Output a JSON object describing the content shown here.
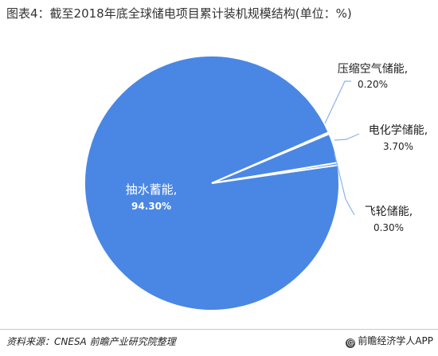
{
  "title": "图表4：截至2018年底全球储电项目累计装机规模结构(单位：%)",
  "source": "资料来源：CNESA  前瞻产业研究院整理",
  "brand": "前瞻经济学人APP",
  "brand_icon": "at-icon",
  "colors": {
    "pie": "#4a87e4",
    "separator": "#ffffff",
    "leader": "#8fb3e6",
    "inside_label": "#ffffff",
    "outside_label": "#222222"
  },
  "chart_data": {
    "type": "pie",
    "title": "图表4：截至2018年底全球储电项目累计装机规模结构(单位：%)",
    "categories": [
      "抽水蓄能",
      "压缩空气储能",
      "电化学储能",
      "飞轮储能"
    ],
    "values": [
      94.3,
      0.2,
      3.7,
      0.3
    ],
    "unit": "%",
    "labels": [
      {
        "name": "抽水蓄能,",
        "value": "94.30%"
      },
      {
        "name": "压缩空气储能,",
        "value": "0.20%"
      },
      {
        "name": "电化学储能,",
        "value": "3.70%"
      },
      {
        "name": "飞轮储能,",
        "value": "0.30%"
      }
    ],
    "legend": "none"
  }
}
